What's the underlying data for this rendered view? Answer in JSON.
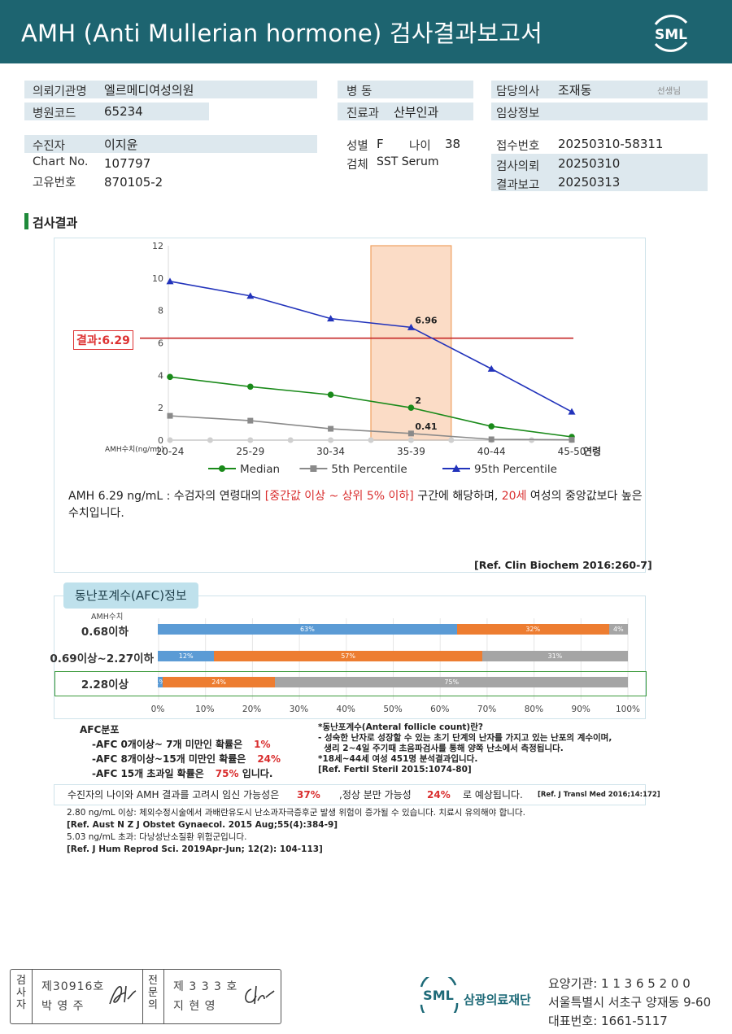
{
  "header": {
    "title": "AMH (Anti Mullerian hormone) 검사결과보고서",
    "logo_text": "SML"
  },
  "info": {
    "requesting_org_label": "의뢰기관명",
    "requesting_org": "엘르메디여성의원",
    "hospital_code_label": "병원코드",
    "hospital_code": "65234",
    "ward_label": "병 동",
    "ward": "",
    "department_label": "진료과",
    "department": "산부인과",
    "doctor_label": "담당의사",
    "doctor": "조재동",
    "doctor_suffix": "선생님",
    "clinical_label": "임상정보",
    "clinical": "",
    "patient_label": "수진자",
    "patient": "이지윤",
    "chart_no_label": "Chart No.",
    "chart_no": "107797",
    "unique_no_label": "고유번호",
    "unique_no": "870105-2",
    "sex_label": "성별",
    "sex": "F",
    "age_label": "나이",
    "age": "38",
    "specimen_label": "검체",
    "specimen": "SST Serum",
    "receipt_no_label": "접수번호",
    "receipt_no": "20250310-58311",
    "request_date_label": "검사의뢰",
    "request_date": "20250310",
    "report_date_label": "결과보고",
    "report_date": "20250313"
  },
  "section_title": "검사결과",
  "chart_data": {
    "type": "line",
    "categories": [
      "20-24",
      "25-29",
      "30-34",
      "35-39",
      "40-44",
      "45-50"
    ],
    "xlabel": "연령",
    "ylabel": "AMH수치(ng/mL)",
    "ylim": [
      0,
      12
    ],
    "yticks": [
      0,
      2,
      4,
      6,
      8,
      10,
      12
    ],
    "series": [
      {
        "name": "Median",
        "color": "#1a8a1a",
        "marker": "circle",
        "values": [
          3.9,
          3.3,
          2.8,
          2.0,
          0.85,
          0.2
        ]
      },
      {
        "name": "5th Percentile",
        "color": "#8a8a8a",
        "marker": "square",
        "values": [
          1.5,
          1.2,
          0.7,
          0.41,
          0.05,
          0.02
        ]
      },
      {
        "name": "95th Percentile",
        "color": "#2233bb",
        "marker": "triangle",
        "values": [
          9.8,
          8.9,
          7.5,
          6.96,
          4.4,
          1.75
        ]
      }
    ],
    "annotations": [
      {
        "category": "35-39",
        "value": 6.96,
        "text": "6.96"
      },
      {
        "category": "35-39",
        "value": 2.0,
        "text": "2"
      },
      {
        "category": "35-39",
        "value": 0.41,
        "text": "0.41"
      }
    ],
    "highlight_category": "35-39",
    "result_value": 6.29,
    "result_label": "결과:6.29",
    "legend_position": "bottom",
    "grid": true
  },
  "chart_text": {
    "part1": "AMH  6.29 ng/mL : 수검자의 연령대의 ",
    "range": "[중간값 이상 ~ 상위 5% 이하]",
    "part2": "  구간에 해당하며, ",
    "age": "20세",
    "part3": " 여성의 중앙값보다 높은 수치입니다.",
    "ref": "[Ref. Clin Biochem 2016:260-7]"
  },
  "afc": {
    "title": "동난포계수(AFC)정보",
    "amh_label": "AMH수치",
    "colors": {
      "low": "#5b9bd5",
      "mid": "#ed7d31",
      "high": "#a5a5a5"
    },
    "rows": [
      {
        "label": "0.68이하",
        "values": [
          63,
          32,
          4
        ],
        "texts": [
          "63%",
          "32%",
          "4%"
        ]
      },
      {
        "label": "0.69이상~2.27이하",
        "values": [
          12,
          57,
          31
        ],
        "texts": [
          "12%",
          "57%",
          "31%"
        ]
      },
      {
        "label": "2.28이상",
        "values": [
          1,
          24,
          75
        ],
        "texts": [
          "1%",
          "24%",
          "75%"
        ]
      }
    ],
    "ticks": [
      "0%",
      "10%",
      "20%",
      "30%",
      "40%",
      "50%",
      "60%",
      "70%",
      "80%",
      "90%",
      "100%"
    ],
    "dist_title": "AFC분포",
    "dist": [
      {
        "text": "-AFC  0개이상~ 7개 미만인 확률은",
        "value": "1%",
        "suffix": ""
      },
      {
        "text": "-AFC  8개이상~15개 미만인 확률은",
        "value": "24%",
        "suffix": ""
      },
      {
        "text": "-AFC  15개 초과일 확률은",
        "value": "75%",
        "suffix": " 입니다."
      }
    ],
    "definition": [
      "*동난포계수(Anteral follicle count)란?",
      "- 성숙한 난자로 성장할 수 있는 초기 단계의 난자를 가지고 있는 난포의 계수이며,",
      "  생리 2~4일 주기때 초음파검사를 통해 양쪽 난소에서 측정됩니다.",
      "*18세~44세 여성 451명 분석결과입니다.",
      "[Ref. Fertil Steril 2015:1074-80]"
    ]
  },
  "pregnancy": {
    "text1": "수진자의 나이와 AMH 결과를 고려시 임신 가능성은",
    "value1": "37%",
    "text2": ",정상 분만 가능성",
    "value2": "24%",
    "text3": "로 예상됩니다.",
    "ref": "[Ref. J Transl Med 2016;14:172]"
  },
  "notes": [
    {
      "text": "2.80  ng/mL  이상: 체외수정시술에서  과배란유도시  난소과자극증후군  발생  위험이 증가될  수  있습니다. 치료시  유의해야  합니다.",
      "bold": false
    },
    {
      "text": "[Ref. Aust N Z J Obstet Gynaecol. 2015 Aug;55(4):384-9]",
      "bold": true
    },
    {
      "text": "5.03  ng/mL  초과: 다낭성난소질환 위험군입니다.",
      "bold": false
    },
    {
      "text": "[Ref. J Hum Reprod Sci. 2019Apr-Jun; 12(2): 104-113]",
      "bold": true
    }
  ],
  "footer": {
    "inspector_label": [
      "검",
      "사",
      "자"
    ],
    "inspector_no": "제30916호",
    "inspector_name": "박  영  주",
    "specialist_label": [
      "전",
      "문",
      "의"
    ],
    "specialist_no": "제 3 3 3 호",
    "specialist_name": "지  현  영",
    "org_name": "삼광의료재단",
    "org_logo": "SML",
    "agency": "요양기관: 1 1 3 6 5 2 0 0",
    "address": "서울특별시 서초구 양재동 9-60",
    "phone": "대표번호: 1661-5117"
  }
}
